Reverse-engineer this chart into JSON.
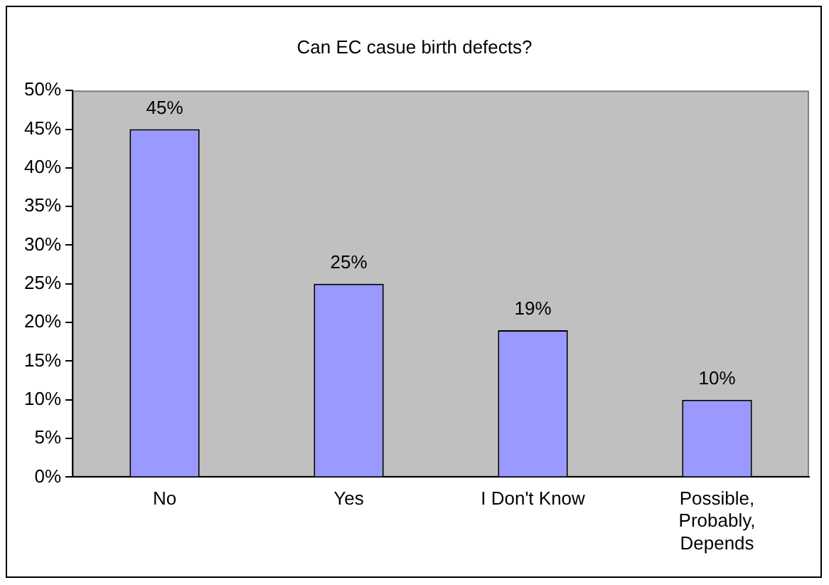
{
  "chart_data": {
    "type": "bar",
    "title": "Can EC casue birth defects?",
    "categories": [
      "No",
      "Yes",
      "I Don't Know",
      "Possible, Probably, Depends"
    ],
    "values": [
      45,
      25,
      19,
      10
    ],
    "value_labels": [
      "45%",
      "25%",
      "19%",
      "10%"
    ],
    "color": "#9999ff",
    "ylim": [
      0,
      50
    ],
    "yticks": [
      {
        "value": 0,
        "label": "0%"
      },
      {
        "value": 5,
        "label": "5%"
      },
      {
        "value": 10,
        "label": "10%"
      },
      {
        "value": 15,
        "label": "15%"
      },
      {
        "value": 20,
        "label": "20%"
      },
      {
        "value": 25,
        "label": "25%"
      },
      {
        "value": 30,
        "label": "30%"
      },
      {
        "value": 35,
        "label": "35%"
      },
      {
        "value": 40,
        "label": "40%"
      },
      {
        "value": 45,
        "label": "45%"
      },
      {
        "value": 50,
        "label": "50%"
      }
    ],
    "grid": false,
    "legend": false
  }
}
